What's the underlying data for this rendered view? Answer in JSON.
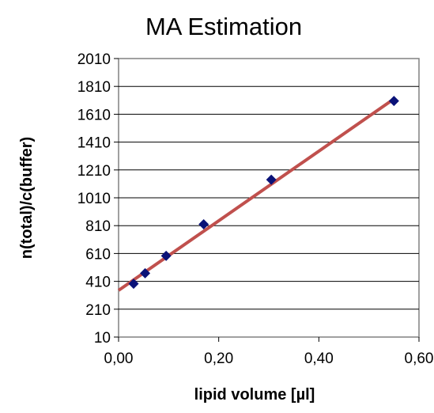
{
  "chart_data": {
    "type": "scatter",
    "title": "MA Estimation",
    "xlabel": "lipid volume [µl]",
    "ylabel": "n(total)/c(buffer)",
    "xlim": [
      0,
      0.6
    ],
    "ylim": [
      10,
      2010
    ],
    "x_ticks": [
      "0,00",
      "0,20",
      "0,40",
      "0,60"
    ],
    "y_ticks": [
      "10",
      "210",
      "410",
      "610",
      "810",
      "1010",
      "1210",
      "1410",
      "1610",
      "1810",
      "2010"
    ],
    "grid": "horizontal",
    "legend": "none",
    "marker": "diamond",
    "series": [
      {
        "points": [
          {
            "x": 0.03,
            "y": 393
          },
          {
            "x": 0.053,
            "y": 468
          },
          {
            "x": 0.095,
            "y": 593
          },
          {
            "x": 0.17,
            "y": 820
          },
          {
            "x": 0.305,
            "y": 1140
          },
          {
            "x": 0.55,
            "y": 1705
          }
        ]
      }
    ],
    "trendline": {
      "type": "linear",
      "x_range": [
        0,
        0.55
      ],
      "y_at_x0": 345,
      "y_at_x_end": 1720
    },
    "colors": {
      "marker": "#0a1278",
      "trendline": "#c0504d",
      "grid": "#000000",
      "plot_border": "#808080"
    }
  }
}
